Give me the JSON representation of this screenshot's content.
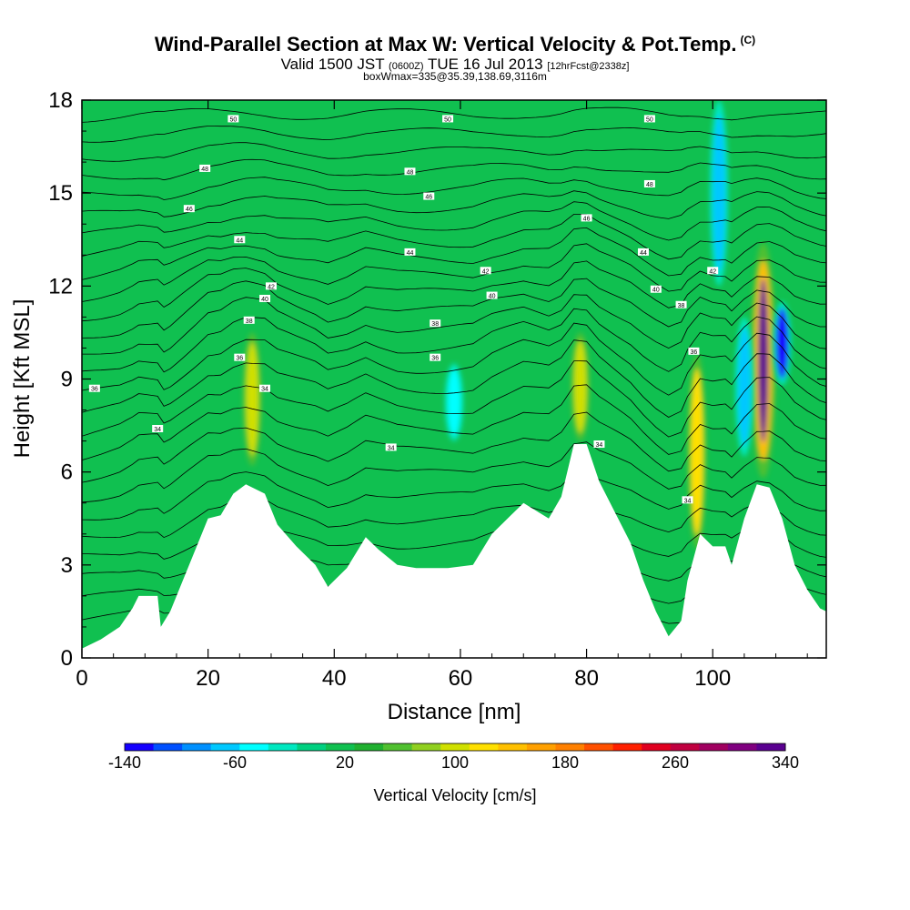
{
  "header": {
    "title": "Wind-Parallel Section at Max W: Vertical Velocity & Pot.Temp.",
    "title_mark": "(C)",
    "subtitle_a": "Valid 1500 JST",
    "subtitle_b": "(0600Z)",
    "subtitle_c": "TUE 16 Jul 2013",
    "subtitle_d": "[12hrFcst@2338z]",
    "subtitle_line2": "boxWmax=335@35.39,138.69,3116m"
  },
  "chart_data": {
    "type": "heatmap",
    "xlabel": "Distance [nm]",
    "ylabel": "Height [Kft MSL]",
    "xlim": [
      0,
      118
    ],
    "ylim": [
      0,
      18
    ],
    "x_ticks": [
      0,
      20,
      40,
      60,
      80,
      100
    ],
    "y_ticks": [
      0,
      3,
      6,
      9,
      12,
      15,
      18
    ],
    "background_field_cm_s": 20,
    "terrain_kft": [
      [
        0,
        0.3
      ],
      [
        3,
        0.6
      ],
      [
        6,
        1.0
      ],
      [
        8,
        1.6
      ],
      [
        9,
        2.0
      ],
      [
        12,
        2.0
      ],
      [
        12.5,
        1.0
      ],
      [
        14,
        1.5
      ],
      [
        16,
        2.5
      ],
      [
        18,
        3.5
      ],
      [
        20,
        4.5
      ],
      [
        22,
        4.6
      ],
      [
        24,
        5.3
      ],
      [
        26,
        5.6
      ],
      [
        29,
        5.3
      ],
      [
        31,
        4.3
      ],
      [
        34,
        3.6
      ],
      [
        37,
        3.0
      ],
      [
        39,
        2.3
      ],
      [
        42,
        2.9
      ],
      [
        45,
        3.9
      ],
      [
        47,
        3.5
      ],
      [
        50,
        3.0
      ],
      [
        53,
        2.9
      ],
      [
        58,
        2.9
      ],
      [
        62,
        3.0
      ],
      [
        65,
        4.0
      ],
      [
        68,
        4.6
      ],
      [
        70,
        5.0
      ],
      [
        74,
        4.5
      ],
      [
        76,
        5.2
      ],
      [
        78,
        6.9
      ],
      [
        80,
        6.9
      ],
      [
        82,
        5.7
      ],
      [
        85,
        4.5
      ],
      [
        87,
        3.7
      ],
      [
        89,
        2.5
      ],
      [
        91,
        1.5
      ],
      [
        93,
        0.7
      ],
      [
        95,
        1.2
      ],
      [
        96,
        2.5
      ],
      [
        98,
        4.0
      ],
      [
        100,
        3.6
      ],
      [
        102,
        3.6
      ],
      [
        103,
        3.0
      ],
      [
        105,
        4.5
      ],
      [
        107,
        5.6
      ],
      [
        109,
        5.5
      ],
      [
        111,
        4.5
      ],
      [
        113,
        3.0
      ],
      [
        115,
        2.2
      ],
      [
        117,
        1.6
      ],
      [
        118,
        1.5
      ]
    ],
    "features": [
      {
        "x": 27,
        "y_bottom": 6.2,
        "y_top": 10.5,
        "value": 110
      },
      {
        "x": 79,
        "y_bottom": 7.0,
        "y_top": 10.5,
        "value": 110
      },
      {
        "x": 97.5,
        "y_bottom": 3.5,
        "y_top": 9.8,
        "value": 120
      },
      {
        "x": 108,
        "y_bottom": 5.8,
        "y_top": 13.4,
        "value": 340
      },
      {
        "x": 111,
        "y_bottom": 8.8,
        "y_top": 11.5,
        "value": -140
      },
      {
        "x": 105,
        "y_bottom": 6.5,
        "y_top": 11.0,
        "value": -60
      },
      {
        "x": 101,
        "y_bottom": 12.0,
        "y_top": 18.0,
        "value": -60
      },
      {
        "x": 59,
        "y_bottom": 7.0,
        "y_top": 9.5,
        "value": -40
      }
    ],
    "contour_labels": [
      {
        "x": 2,
        "y": 8.7,
        "text": "36"
      },
      {
        "x": 12,
        "y": 7.4,
        "text": "34"
      },
      {
        "x": 25,
        "y": 9.7,
        "text": "36"
      },
      {
        "x": 26.5,
        "y": 10.9,
        "text": "38"
      },
      {
        "x": 29,
        "y": 8.7,
        "text": "34"
      },
      {
        "x": 29,
        "y": 11.6,
        "text": "40"
      },
      {
        "x": 30,
        "y": 12.0,
        "text": "42"
      },
      {
        "x": 25,
        "y": 13.5,
        "text": "44"
      },
      {
        "x": 17,
        "y": 14.5,
        "text": "46"
      },
      {
        "x": 19.5,
        "y": 15.8,
        "text": "48"
      },
      {
        "x": 24,
        "y": 17.4,
        "text": "50"
      },
      {
        "x": 49,
        "y": 6.8,
        "text": "34"
      },
      {
        "x": 56,
        "y": 9.7,
        "text": "36"
      },
      {
        "x": 56,
        "y": 10.8,
        "text": "38"
      },
      {
        "x": 65,
        "y": 11.7,
        "text": "40"
      },
      {
        "x": 64,
        "y": 12.5,
        "text": "42"
      },
      {
        "x": 52,
        "y": 13.1,
        "text": "44"
      },
      {
        "x": 55,
        "y": 14.9,
        "text": "46"
      },
      {
        "x": 52,
        "y": 15.7,
        "text": "48"
      },
      {
        "x": 58,
        "y": 17.4,
        "text": "50"
      },
      {
        "x": 82,
        "y": 6.9,
        "text": "34"
      },
      {
        "x": 96,
        "y": 5.1,
        "text": "34"
      },
      {
        "x": 97,
        "y": 9.9,
        "text": "36"
      },
      {
        "x": 95,
        "y": 11.4,
        "text": "38"
      },
      {
        "x": 91,
        "y": 11.9,
        "text": "40"
      },
      {
        "x": 100,
        "y": 12.5,
        "text": "42"
      },
      {
        "x": 89,
        "y": 13.1,
        "text": "44"
      },
      {
        "x": 80,
        "y": 14.2,
        "text": "46"
      },
      {
        "x": 90,
        "y": 15.3,
        "text": "48"
      },
      {
        "x": 90,
        "y": 17.4,
        "text": "50"
      }
    ],
    "colorbar": {
      "label": "Vertical Velocity [cm/s]",
      "tick_labels": [
        "-140",
        "-60",
        "20",
        "100",
        "180",
        "260",
        "340"
      ],
      "colors": [
        "#1400ff",
        "#0050ff",
        "#0090ff",
        "#00c8ff",
        "#00ffff",
        "#00e8c0",
        "#00d080",
        "#10c050",
        "#20b030",
        "#50c030",
        "#90d020",
        "#d0e000",
        "#ffe000",
        "#ffc000",
        "#ffa000",
        "#ff8000",
        "#ff5000",
        "#ff2000",
        "#e00020",
        "#c00040",
        "#a00060",
        "#800080",
        "#5a0090"
      ]
    }
  }
}
